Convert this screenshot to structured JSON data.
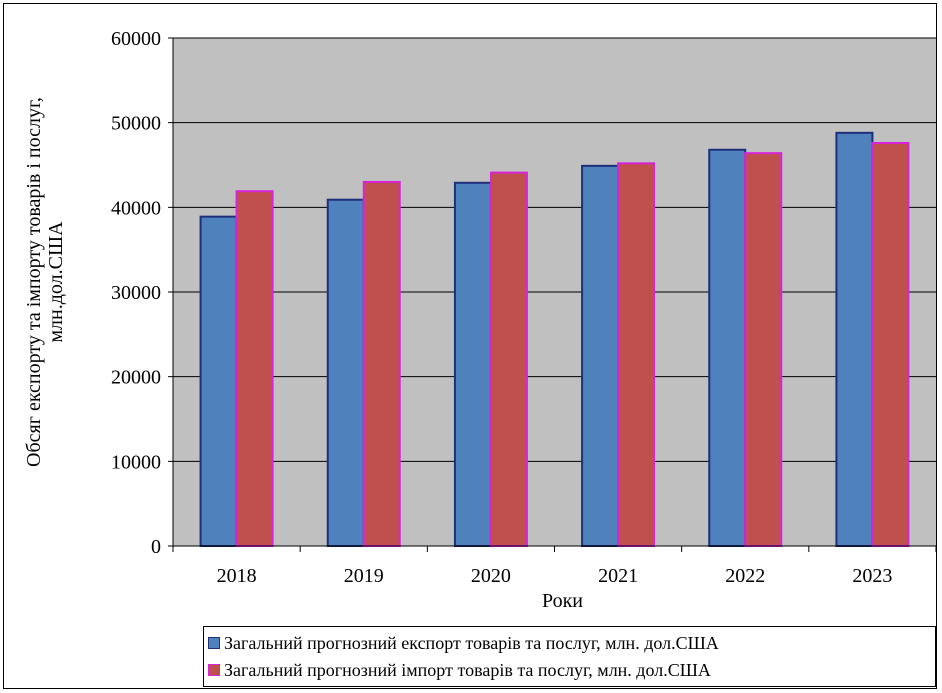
{
  "chart_data": {
    "type": "bar",
    "categories": [
      "2018",
      "2019",
      "2020",
      "2021",
      "2022",
      "2023"
    ],
    "series": [
      {
        "name": "Загальний прогнозний експорт товарів та послуг, млн. дол.США",
        "values": [
          38900,
          40900,
          42900,
          44900,
          46800,
          48800
        ],
        "color": "#4f81bd",
        "border": "#1f2f7a"
      },
      {
        "name": "Загальний прогнозний імпорт товарів та послуг, млн. дол.США",
        "values": [
          41900,
          43000,
          44100,
          45200,
          46400,
          47600
        ],
        "color": "#c0504d",
        "border": "#d824d8"
      }
    ],
    "xlabel": "Роки",
    "ylabel_line1": "Обсяг експорту та імпорту товарів і послуг,",
    "ylabel_line2": "млн.дол.США",
    "ylim": [
      0,
      60000
    ],
    "yticks": [
      0,
      10000,
      20000,
      30000,
      40000,
      50000,
      60000
    ],
    "plot_background": "#c0c0c0",
    "grid": true,
    "legend_position": "bottom"
  }
}
